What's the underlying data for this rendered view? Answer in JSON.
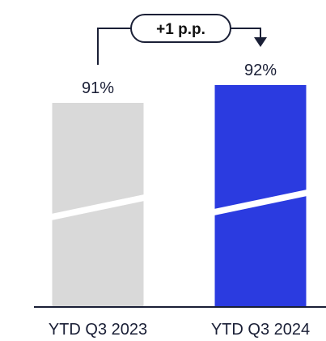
{
  "chart_data": {
    "type": "bar",
    "categories": [
      "YTD Q3 2023",
      "YTD Q3 2024"
    ],
    "values": [
      91,
      92
    ],
    "value_labels": [
      "91%",
      "92%"
    ],
    "axis_break": true,
    "annotation": "+1 p.p.",
    "colors": [
      "#d9d9d9",
      "#2b3be0"
    ]
  }
}
